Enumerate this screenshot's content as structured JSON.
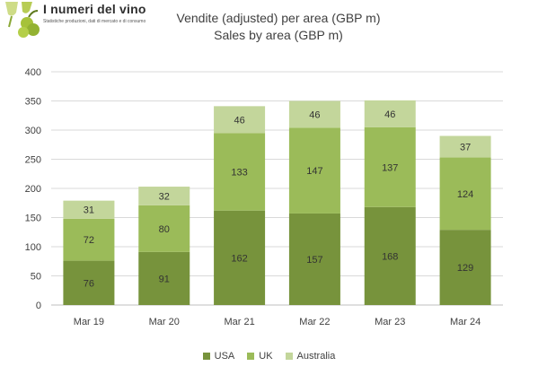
{
  "logo": {
    "name": "I numeri del vino",
    "tagline": "Statistiche produzioni, dati di mercato e di consumo"
  },
  "colors": {
    "usa": "#77933c",
    "uk": "#9bbb59",
    "australia": "#c3d69b",
    "grid": "#d9d9d9",
    "text": "#404040",
    "axis": "#bfbfbf"
  },
  "chart_data": {
    "type": "bar",
    "stacked": true,
    "title": "Vendite (adjusted) per area (GBP m)",
    "subtitle": "Sales by area (GBP m)",
    "xlabel": "",
    "ylabel": "",
    "ylim": [
      0,
      400
    ],
    "yticks": [
      0,
      50,
      100,
      150,
      200,
      250,
      300,
      350,
      400
    ],
    "grid": true,
    "legend_position": "bottom",
    "categories": [
      "Mar 19",
      "Mar 20",
      "Mar 21",
      "Mar 22",
      "Mar 23",
      "Mar 24"
    ],
    "series": [
      {
        "name": "USA",
        "values": [
          76,
          91,
          162,
          157,
          168,
          129
        ]
      },
      {
        "name": "UK",
        "values": [
          72,
          80,
          133,
          147,
          137,
          124
        ]
      },
      {
        "name": "Australia",
        "values": [
          31,
          32,
          46,
          46,
          46,
          37
        ]
      }
    ]
  }
}
